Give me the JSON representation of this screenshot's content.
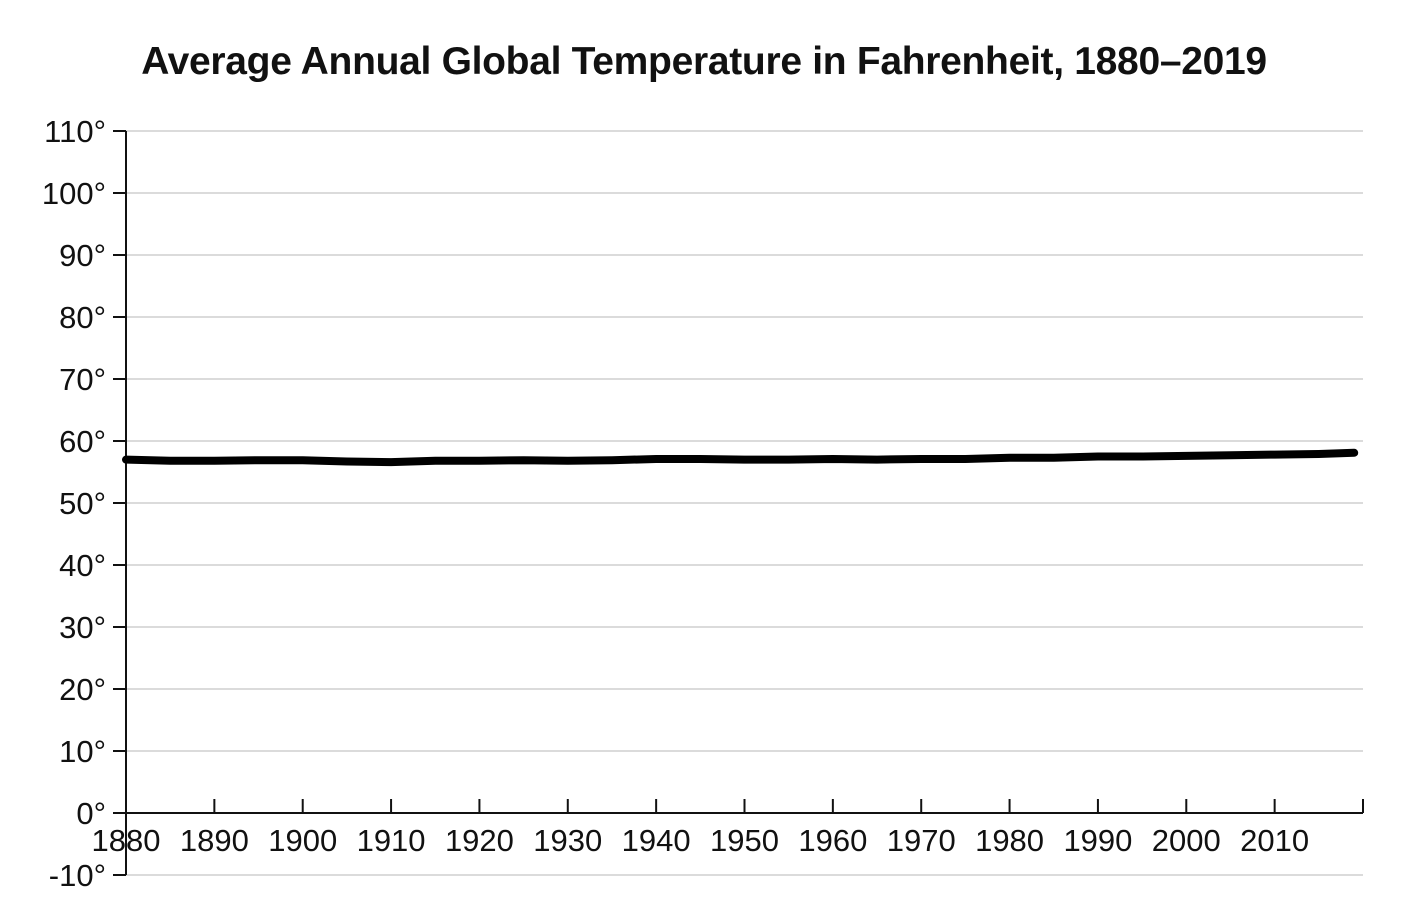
{
  "chart_data": {
    "type": "line",
    "title": "Average Annual Global Temperature in Fahrenheit, 1880–2019",
    "xlabel": "",
    "ylabel": "",
    "xlim": [
      1880,
      2020
    ],
    "ylim": [
      -10,
      110
    ],
    "grid": true,
    "y_ticks": [
      {
        "value": 110,
        "label": "110°"
      },
      {
        "value": 100,
        "label": "100°"
      },
      {
        "value": 90,
        "label": "90°"
      },
      {
        "value": 80,
        "label": "80°"
      },
      {
        "value": 70,
        "label": "70°"
      },
      {
        "value": 60,
        "label": "60°"
      },
      {
        "value": 50,
        "label": "50°"
      },
      {
        "value": 40,
        "label": "40°"
      },
      {
        "value": 30,
        "label": "30°"
      },
      {
        "value": 20,
        "label": "20°"
      },
      {
        "value": 10,
        "label": "10°"
      },
      {
        "value": 0,
        "label": "0°"
      },
      {
        "value": -10,
        "label": "-10°"
      }
    ],
    "x_ticks": [
      {
        "value": 1880,
        "label": "1880"
      },
      {
        "value": 1890,
        "label": "1890"
      },
      {
        "value": 1900,
        "label": "1900"
      },
      {
        "value": 1910,
        "label": "1910"
      },
      {
        "value": 1920,
        "label": "1920"
      },
      {
        "value": 1930,
        "label": "1930"
      },
      {
        "value": 1940,
        "label": "1940"
      },
      {
        "value": 1950,
        "label": "1950"
      },
      {
        "value": 1960,
        "label": "1960"
      },
      {
        "value": 1970,
        "label": "1970"
      },
      {
        "value": 1980,
        "label": "1980"
      },
      {
        "value": 1990,
        "label": "1990"
      },
      {
        "value": 2000,
        "label": "2000"
      },
      {
        "value": 2010,
        "label": "2010"
      }
    ],
    "series": [
      {
        "color": "#000000",
        "x": [
          1880,
          1885,
          1890,
          1895,
          1900,
          1905,
          1910,
          1915,
          1920,
          1925,
          1930,
          1935,
          1940,
          1945,
          1950,
          1955,
          1960,
          1965,
          1970,
          1975,
          1980,
          1985,
          1990,
          1995,
          2000,
          2005,
          2010,
          2015,
          2019
        ],
        "y": [
          57.0,
          56.8,
          56.8,
          56.9,
          56.9,
          56.7,
          56.6,
          56.8,
          56.8,
          56.9,
          56.8,
          56.9,
          57.1,
          57.1,
          57.0,
          57.0,
          57.1,
          57.0,
          57.1,
          57.1,
          57.3,
          57.3,
          57.5,
          57.5,
          57.6,
          57.7,
          57.8,
          57.9,
          58.1
        ]
      }
    ]
  }
}
